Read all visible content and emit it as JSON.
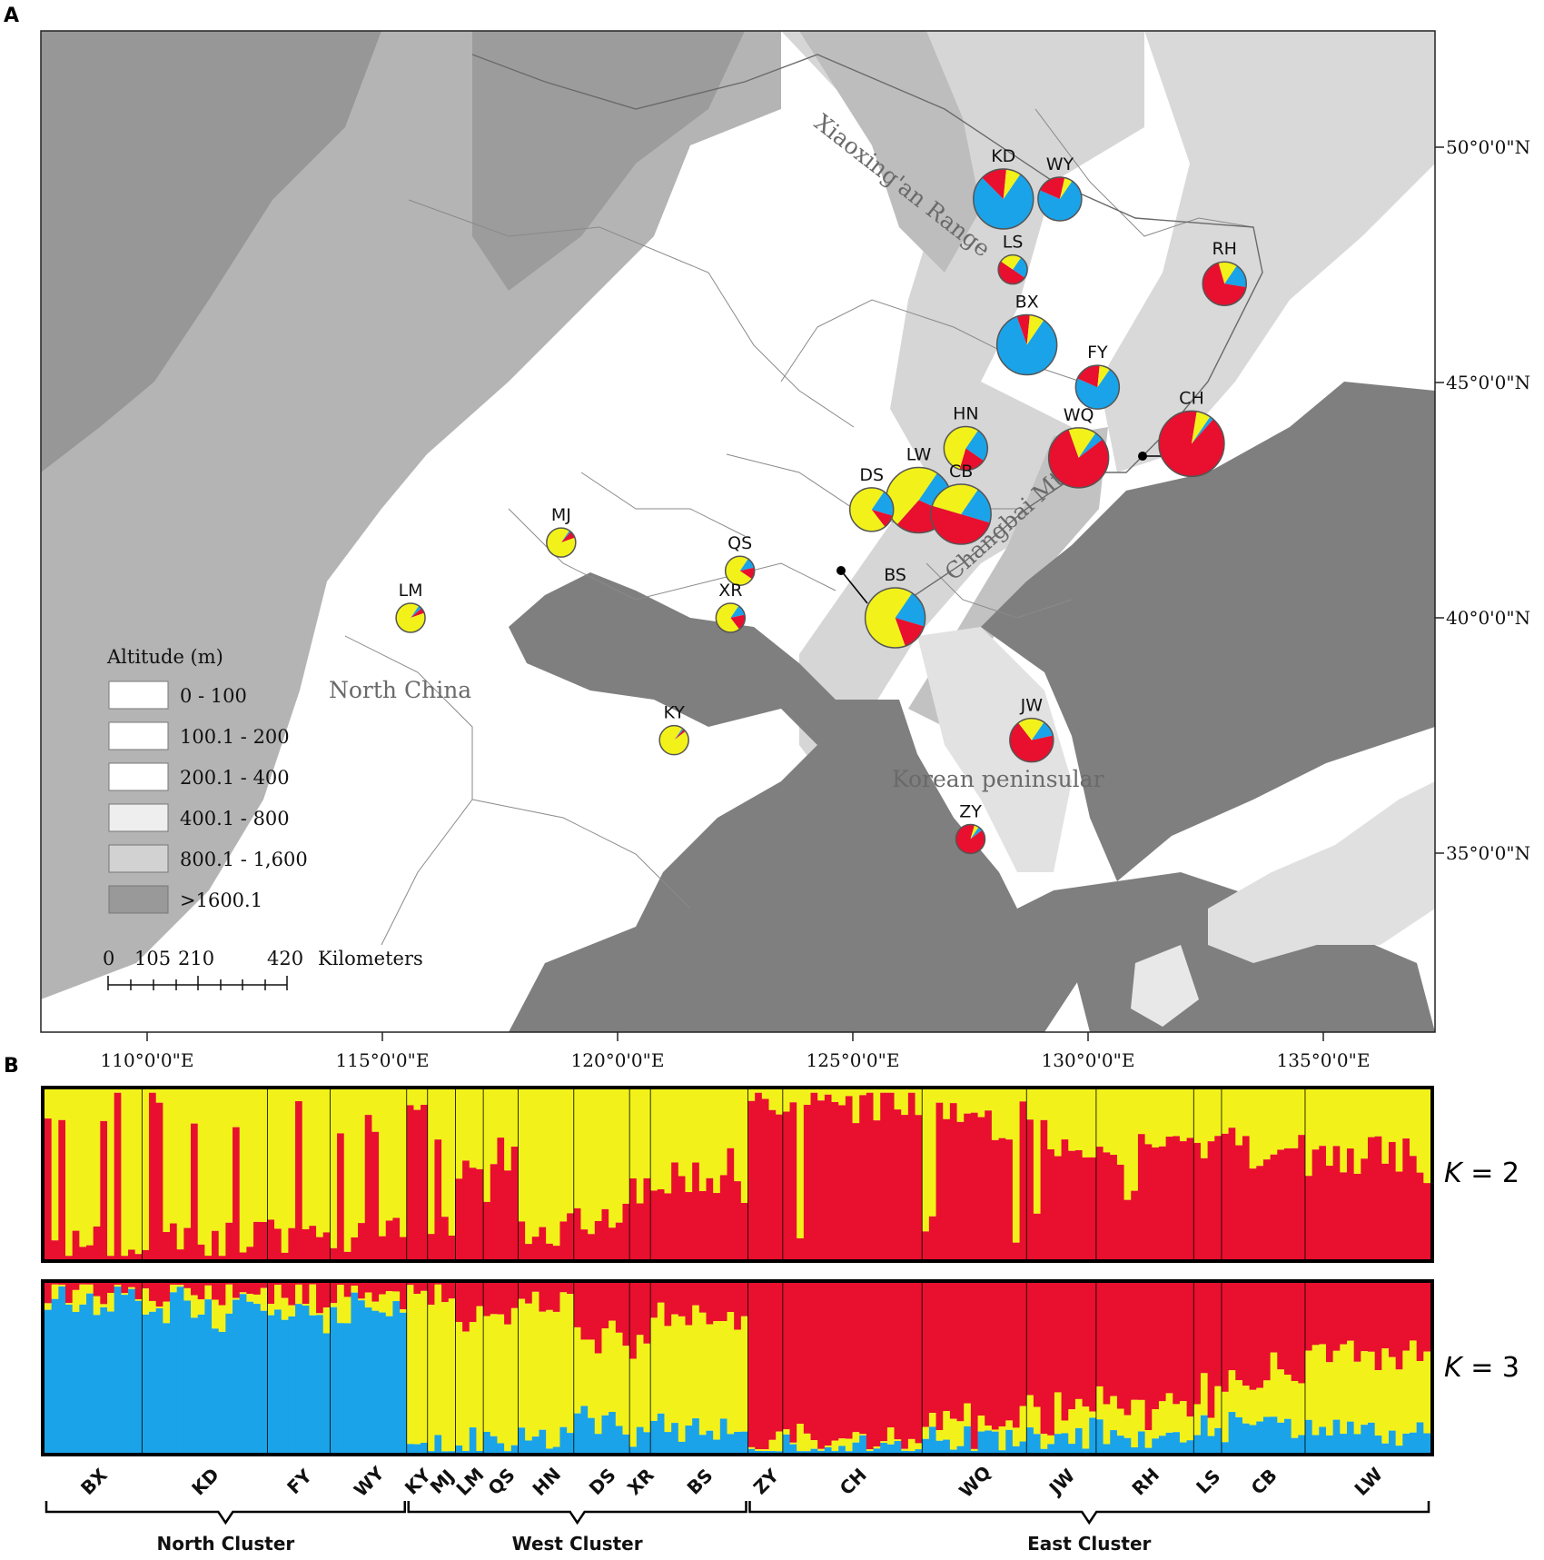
{
  "panels": {
    "a": "A",
    "b": "B"
  },
  "colors": {
    "blue": "#1aa3e8",
    "yellow": "#f2f21a",
    "red": "#e8102e",
    "sea": "#7f7f7f",
    "low": "#ffffff",
    "mid": "#dcdcdc",
    "high": "#b5b5b5",
    "peak": "#959595"
  },
  "map": {
    "lat_labels": [
      "50°0'0\"N",
      "45°0'0\"N",
      "40°0'0\"N",
      "35°0'0\"N"
    ],
    "lon_labels": [
      "110°0'0\"E",
      "115°0'0\"E",
      "120°0'0\"E",
      "125°0'0\"E",
      "130°0'0\"E",
      "135°0'0\"E"
    ],
    "regions": {
      "xiaoxing": "Xiaoxing'an Range",
      "changbai": "Changbai Mt.",
      "north_china": "North China",
      "korea": "Korean peninsular"
    },
    "legend": {
      "title": "Altitude (m)",
      "classes": [
        "0 - 100",
        "100.1 - 200",
        "200.1 - 400",
        "400.1 - 800",
        "800.1 - 1,600",
        ">1600.1"
      ]
    },
    "scale": {
      "ticks": [
        "0",
        "105",
        "210",
        "420"
      ],
      "unit": "Kilometers"
    },
    "sites": [
      {
        "id": "KD",
        "lon": 128.2,
        "lat": 48.9,
        "size": "L",
        "blue": 0.78,
        "yellow": 0.08,
        "red": 0.14
      },
      {
        "id": "WY",
        "lon": 129.4,
        "lat": 48.9,
        "size": "M",
        "blue": 0.72,
        "yellow": 0.06,
        "red": 0.22
      },
      {
        "id": "LS",
        "lon": 128.4,
        "lat": 47.4,
        "size": "S",
        "blue": 0.25,
        "yellow": 0.25,
        "red": 0.5
      },
      {
        "id": "RH",
        "lon": 132.9,
        "lat": 47.1,
        "size": "M",
        "blue": 0.18,
        "yellow": 0.14,
        "red": 0.68
      },
      {
        "id": "BX",
        "lon": 128.7,
        "lat": 45.8,
        "size": "L",
        "blue": 0.85,
        "yellow": 0.08,
        "red": 0.07
      },
      {
        "id": "FY",
        "lon": 130.2,
        "lat": 44.9,
        "size": "M",
        "blue": 0.72,
        "yellow": 0.08,
        "red": 0.2
      },
      {
        "id": "HN",
        "lon": 127.4,
        "lat": 43.6,
        "size": "M",
        "blue": 0.25,
        "yellow": 0.55,
        "red": 0.2
      },
      {
        "id": "WQ",
        "lon": 129.8,
        "lat": 43.4,
        "size": "L",
        "blue": 0.05,
        "yellow": 0.15,
        "red": 0.8
      },
      {
        "id": "CH",
        "lon": 132.2,
        "lat": 43.7,
        "size": "XL",
        "blue": 0.02,
        "yellow": 0.07,
        "red": 0.91
      },
      {
        "id": "LW",
        "lon": 126.4,
        "lat": 42.5,
        "size": "XL",
        "blue": 0.22,
        "yellow": 0.48,
        "red": 0.3
      },
      {
        "id": "CB",
        "lon": 127.3,
        "lat": 42.2,
        "size": "L",
        "blue": 0.2,
        "yellow": 0.3,
        "red": 0.5
      },
      {
        "id": "DS",
        "lon": 125.4,
        "lat": 42.3,
        "size": "M",
        "blue": 0.2,
        "yellow": 0.7,
        "red": 0.1
      },
      {
        "id": "MJ",
        "lon": 118.8,
        "lat": 41.6,
        "size": "S",
        "blue": 0.02,
        "yellow": 0.9,
        "red": 0.08
      },
      {
        "id": "QS",
        "lon": 122.6,
        "lat": 41.0,
        "size": "S",
        "blue": 0.12,
        "yellow": 0.75,
        "red": 0.13
      },
      {
        "id": "XR",
        "lon": 122.4,
        "lat": 40.0,
        "size": "S",
        "blue": 0.12,
        "yellow": 0.7,
        "red": 0.18
      },
      {
        "id": "LM",
        "lon": 115.6,
        "lat": 40.0,
        "size": "S",
        "blue": 0.04,
        "yellow": 0.9,
        "red": 0.06
      },
      {
        "id": "BS",
        "lon": 125.9,
        "lat": 40.0,
        "size": "L",
        "blue": 0.2,
        "yellow": 0.65,
        "red": 0.15
      },
      {
        "id": "KY",
        "lon": 121.2,
        "lat": 37.4,
        "size": "S",
        "blue": 0.02,
        "yellow": 0.95,
        "red": 0.03
      },
      {
        "id": "JW",
        "lon": 128.8,
        "lat": 37.4,
        "size": "M",
        "blue": 0.12,
        "yellow": 0.2,
        "red": 0.68
      },
      {
        "id": "ZY",
        "lon": 127.5,
        "lat": 35.3,
        "size": "S",
        "blue": 0.05,
        "yellow": 0.05,
        "red": 0.9
      }
    ]
  },
  "structure": {
    "k_labels": [
      "K",
      " = 2",
      "K",
      " = 3"
    ],
    "populations": [
      {
        "id": "BX",
        "n": 14,
        "k2_yellow": 0.93,
        "k3": [
          0.9,
          0.05,
          0.05
        ]
      },
      {
        "id": "KD",
        "n": 18,
        "k2_yellow": 0.9,
        "k3": [
          0.86,
          0.08,
          0.06
        ]
      },
      {
        "id": "FY",
        "n": 9,
        "k2_yellow": 0.88,
        "k3": [
          0.82,
          0.1,
          0.08
        ]
      },
      {
        "id": "WY",
        "n": 11,
        "k2_yellow": 0.86,
        "k3": [
          0.8,
          0.12,
          0.08
        ]
      },
      {
        "id": "KY",
        "n": 3,
        "k2_yellow": 0.1,
        "k3": [
          0.02,
          0.96,
          0.02
        ]
      },
      {
        "id": "MJ",
        "n": 4,
        "k2_yellow": 0.78,
        "k3": [
          0.03,
          0.93,
          0.04
        ]
      },
      {
        "id": "LM",
        "n": 4,
        "k2_yellow": 0.5,
        "k3": [
          0.08,
          0.7,
          0.22
        ]
      },
      {
        "id": "QS",
        "n": 5,
        "k2_yellow": 0.4,
        "k3": [
          0.05,
          0.75,
          0.2
        ]
      },
      {
        "id": "HN",
        "n": 8,
        "k2_yellow": 0.85,
        "k3": [
          0.06,
          0.84,
          0.1
        ]
      },
      {
        "id": "DS",
        "n": 8,
        "k2_yellow": 0.78,
        "k3": [
          0.2,
          0.5,
          0.3
        ]
      },
      {
        "id": "XR",
        "n": 3,
        "k2_yellow": 0.6,
        "k3": [
          0.12,
          0.52,
          0.36
        ]
      },
      {
        "id": "BS",
        "n": 14,
        "k2_yellow": 0.55,
        "k3": [
          0.15,
          0.65,
          0.2
        ]
      },
      {
        "id": "ZY",
        "n": 5,
        "k2_yellow": 0.05,
        "k3": [
          0.04,
          0.04,
          0.92
        ]
      },
      {
        "id": "CH",
        "n": 20,
        "k2_yellow": 0.08,
        "k3": [
          0.03,
          0.05,
          0.92
        ]
      },
      {
        "id": "WQ",
        "n": 15,
        "k2_yellow": 0.18,
        "k3": [
          0.08,
          0.1,
          0.82
        ]
      },
      {
        "id": "JW",
        "n": 10,
        "k2_yellow": 0.3,
        "k3": [
          0.1,
          0.15,
          0.75
        ]
      },
      {
        "id": "RH",
        "n": 14,
        "k2_yellow": 0.32,
        "k3": [
          0.12,
          0.15,
          0.73
        ]
      },
      {
        "id": "LS",
        "n": 4,
        "k2_yellow": 0.3,
        "k3": [
          0.18,
          0.2,
          0.62
        ]
      },
      {
        "id": "CB",
        "n": 12,
        "k2_yellow": 0.35,
        "k3": [
          0.15,
          0.3,
          0.55
        ]
      },
      {
        "id": "LW",
        "n": 18,
        "k2_yellow": 0.4,
        "k3": [
          0.12,
          0.45,
          0.43
        ]
      }
    ],
    "clusters": [
      {
        "name": "North Cluster",
        "from": 0,
        "to": 3
      },
      {
        "name": "West Cluster",
        "from": 4,
        "to": 11
      },
      {
        "name": "East Cluster",
        "from": 12,
        "to": 19
      }
    ]
  }
}
